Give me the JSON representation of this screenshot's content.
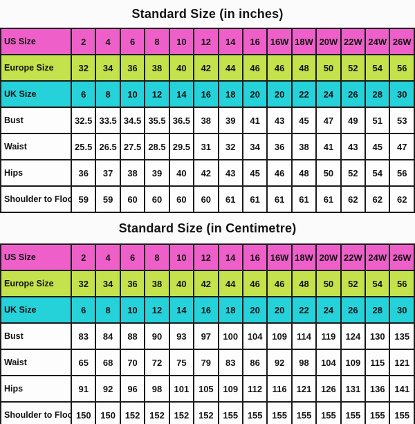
{
  "colors": {
    "pink": "#ee5fc9",
    "green": "#c3e24b",
    "cyan": "#25d2da",
    "cell_white": "#fdfdfd",
    "border": "#1b1b1b",
    "text": "#131313",
    "page_bg": "#fcfbfc"
  },
  "chart_data": [
    {
      "type": "table",
      "title": "Standard Size (in inches)",
      "rows": [
        {
          "label": "US Size",
          "style": "pink",
          "values": [
            "2",
            "4",
            "6",
            "8",
            "10",
            "12",
            "14",
            "16",
            "16W",
            "18W",
            "20W",
            "22W",
            "24W",
            "26W"
          ]
        },
        {
          "label": "Europe Size",
          "style": "green",
          "values": [
            "32",
            "34",
            "36",
            "38",
            "40",
            "42",
            "44",
            "46",
            "46",
            "48",
            "50",
            "52",
            "54",
            "56"
          ]
        },
        {
          "label": "UK Size",
          "style": "cyan",
          "values": [
            "6",
            "8",
            "10",
            "12",
            "14",
            "16",
            "18",
            "20",
            "20",
            "22",
            "24",
            "26",
            "28",
            "30"
          ]
        },
        {
          "label": "Bust",
          "style": "white",
          "values": [
            "32.5",
            "33.5",
            "34.5",
            "35.5",
            "36.5",
            "38",
            "39",
            "41",
            "43",
            "45",
            "47",
            "49",
            "51",
            "53"
          ]
        },
        {
          "label": "Waist",
          "style": "white",
          "values": [
            "25.5",
            "26.5",
            "27.5",
            "28.5",
            "29.5",
            "31",
            "32",
            "34",
            "36",
            "38",
            "41",
            "43",
            "45",
            "47"
          ]
        },
        {
          "label": "Hips",
          "style": "white",
          "values": [
            "36",
            "37",
            "38",
            "39",
            "40",
            "42",
            "43",
            "45",
            "46",
            "48",
            "50",
            "52",
            "54",
            "56"
          ]
        },
        {
          "label": "Shoulder to Floor",
          "style": "white",
          "values": [
            "59",
            "59",
            "60",
            "60",
            "60",
            "60",
            "61",
            "61",
            "61",
            "61",
            "61",
            "62",
            "62",
            "62"
          ]
        }
      ]
    },
    {
      "type": "table",
      "title": "Standard Size (in Centimetre)",
      "rows": [
        {
          "label": "US Size",
          "style": "pink",
          "values": [
            "2",
            "4",
            "6",
            "8",
            "10",
            "12",
            "14",
            "16",
            "16W",
            "18W",
            "20W",
            "22W",
            "24W",
            "26W"
          ]
        },
        {
          "label": "Europe Size",
          "style": "green",
          "values": [
            "32",
            "34",
            "36",
            "38",
            "40",
            "42",
            "44",
            "46",
            "46",
            "48",
            "50",
            "52",
            "54",
            "56"
          ]
        },
        {
          "label": "UK Size",
          "style": "cyan",
          "values": [
            "6",
            "8",
            "10",
            "12",
            "14",
            "16",
            "18",
            "20",
            "20",
            "22",
            "24",
            "26",
            "28",
            "30"
          ]
        },
        {
          "label": "Bust",
          "style": "white",
          "values": [
            "83",
            "84",
            "88",
            "90",
            "93",
            "97",
            "100",
            "104",
            "109",
            "114",
            "119",
            "124",
            "130",
            "135"
          ]
        },
        {
          "label": "Waist",
          "style": "white",
          "values": [
            "65",
            "68",
            "70",
            "72",
            "75",
            "79",
            "83",
            "86",
            "92",
            "98",
            "104",
            "109",
            "115",
            "121"
          ]
        },
        {
          "label": "Hips",
          "style": "white",
          "values": [
            "91",
            "92",
            "96",
            "98",
            "101",
            "105",
            "109",
            "112",
            "116",
            "121",
            "126",
            "131",
            "136",
            "141"
          ]
        },
        {
          "label": "Shoulder to Floor",
          "style": "white",
          "values": [
            "150",
            "150",
            "152",
            "152",
            "152",
            "152",
            "155",
            "155",
            "155",
            "155",
            "155",
            "155",
            "155",
            "155"
          ]
        }
      ]
    }
  ]
}
